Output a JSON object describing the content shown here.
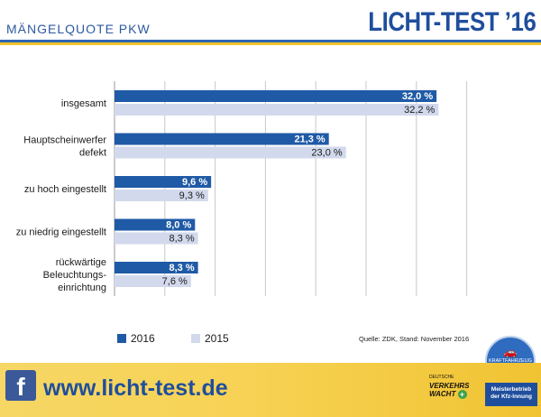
{
  "header": {
    "subtitle": "MÄNGELQUOTE PKW",
    "brand": "LICHT-TEST ’16"
  },
  "colors": {
    "series_2016": "#1f5aa6",
    "series_2015": "#d2d9ec",
    "gridline": "#c8c8c8"
  },
  "chart_data": {
    "type": "bar",
    "orientation": "horizontal",
    "title": "MÄNGELQUOTE PKW",
    "categories": [
      [
        "insgesamt"
      ],
      [
        "Hauptscheinwerfer",
        "defekt"
      ],
      [
        "zu hoch eingestellt"
      ],
      [
        "zu niedrig eingestellt"
      ],
      [
        "rückwärtige",
        "Beleuchtungs-",
        "einrichtung"
      ]
    ],
    "series": [
      {
        "name": "2016",
        "values": [
          32.0,
          21.3,
          9.6,
          8.0,
          8.3
        ],
        "labels": [
          "32,0 %",
          "21,3 %",
          "9,6 %",
          "8,0 %",
          "8,3 %"
        ]
      },
      {
        "name": "2015",
        "values": [
          32.2,
          23.0,
          9.3,
          8.3,
          7.6
        ],
        "labels": [
          "32,2 %",
          "23,0 %",
          "9,3 %",
          "8,3 %",
          "7,6 %"
        ]
      }
    ],
    "xlim": [
      0,
      35
    ],
    "grid": true,
    "legend": "bottom-left"
  },
  "source": "Quelle: ZDK, Stand: November 2016",
  "badge": {
    "ring_text": "KRAFTFAHRZEUG GEWERBE",
    "car_icon": "car-icon"
  },
  "footer": {
    "facebook_icon": "facebook-icon",
    "url": "www.licht-test.de",
    "vw_small": "DEUTSCHE",
    "vw_line1": "VERKEHRS",
    "vw_line2": "WACHT",
    "meister_line1": "Meisterbetrieb",
    "meister_line2": "der Kfz-Innung"
  }
}
